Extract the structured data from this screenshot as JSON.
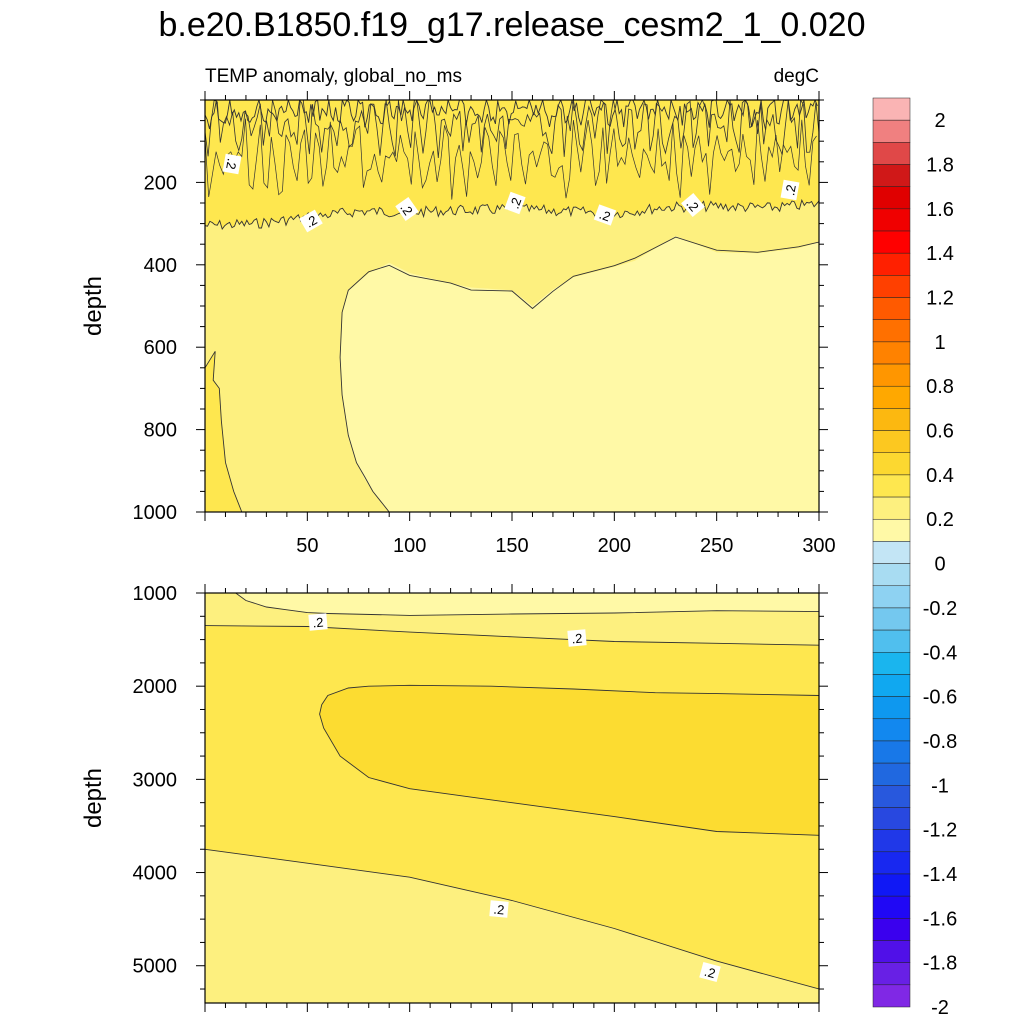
{
  "title": "b.e20.B1850.f19_g17.release_cesm2_1_0.020",
  "colors": {
    "lev_0_to_0_1": "#fff9a6",
    "lev_0_1_to_0_2": "#fdf07f",
    "lev_0_2_to_0_3": "#fee74f",
    "lev_0_3_to_0_4": "#fcdc31",
    "contour_line": "#333333"
  },
  "chart_data": [
    {
      "type": "contour",
      "panel": "upper",
      "left_title": "TEMP anomaly, global_no_ms",
      "right_title": "degC",
      "ylabel": "depth",
      "xlabel": "",
      "xlim": [
        0,
        300
      ],
      "ylim": [
        1000,
        0
      ],
      "y_reversed": true,
      "xticks": [
        50,
        100,
        150,
        200,
        250,
        300
      ],
      "yticks": [
        200,
        400,
        600,
        800,
        1000
      ],
      "contour_labels": [
        ".2",
        ".2",
        ".2",
        ".2",
        ".2",
        ".2",
        ".2"
      ],
      "regions": [
        {
          "level": "0.1 to 0.2",
          "desc": "main background, 250-1000 m"
        },
        {
          "level": "0 to 0.1",
          "desc": "large pale pocket x>65, below ~300-500 m"
        },
        {
          "level": "0.2 to 0.4",
          "desc": "noisy surface band 0-280 m"
        },
        {
          "level": "0.2 to 0.3",
          "desc": "thin wedge x<20 at 600-1000 m"
        }
      ],
      "boundary_02_upper": {
        "x": [
          0,
          25,
          50,
          75,
          100,
          125,
          150,
          175,
          200,
          225,
          250,
          275,
          300
        ],
        "depth": [
          305,
          300,
          285,
          270,
          272,
          268,
          265,
          270,
          275,
          260,
          258,
          262,
          252
        ]
      },
      "boundary_01_upper": {
        "x": [
          300,
          290,
          270,
          250,
          230,
          210,
          200,
          180,
          170,
          160,
          150,
          130,
          120,
          100,
          90,
          80,
          70,
          67,
          66,
          67,
          70,
          74,
          78,
          82,
          86,
          90
        ],
        "depth": [
          345,
          360,
          372,
          370,
          330,
          390,
          405,
          430,
          460,
          500,
          462,
          455,
          445,
          420,
          395,
          420,
          460,
          520,
          620,
          720,
          820,
          880,
          920,
          950,
          975,
          1000
        ]
      },
      "boundary_02_wedge": {
        "x": [
          0,
          5,
          4,
          7,
          8,
          10,
          14,
          18
        ],
        "depth": [
          650,
          610,
          680,
          700,
          780,
          880,
          950,
          1000
        ]
      }
    },
    {
      "type": "contour",
      "panel": "lower",
      "left_title": "",
      "right_title": "",
      "ylabel": "depth",
      "xlabel": "",
      "xlim": [
        0,
        300
      ],
      "ylim": [
        5400,
        1000
      ],
      "y_reversed": true,
      "xticks": [
        50,
        100,
        150,
        200,
        250,
        300
      ],
      "yticks": [
        1000,
        2000,
        3000,
        4000,
        5000
      ],
      "contour_labels": [
        ".2",
        ".2",
        ".2",
        ".2"
      ],
      "regions": [
        {
          "level": "0 to 0.1",
          "desc": "top strip below ~1000 m"
        },
        {
          "level": "0.1 to 0.2",
          "desc": "upper band ~1000-1600 m"
        },
        {
          "level": "0.2 to 0.3",
          "desc": "main background"
        },
        {
          "level": "0.3 to 0.4",
          "desc": "core 2000-3600 m, x>60"
        },
        {
          "level": "0.1 to 0.2",
          "desc": "deep band below 3750-5300 m"
        }
      ],
      "contour_a": {
        "x": [
          15,
          20,
          30,
          40,
          50,
          60,
          100,
          150,
          200,
          250,
          300
        ],
        "depth": [
          1000,
          1080,
          1150,
          1180,
          1210,
          1220,
          1240,
          1225,
          1215,
          1190,
          1200
        ]
      },
      "contour_b": {
        "x": [
          0,
          50,
          100,
          150,
          200,
          250,
          300
        ],
        "depth": [
          1350,
          1360,
          1420,
          1470,
          1520,
          1540,
          1560
        ]
      },
      "core_03": {
        "x": [
          57,
          60,
          70,
          80,
          100,
          140,
          180,
          220,
          250,
          300,
          300,
          250,
          200,
          150,
          100,
          80,
          66,
          58,
          56
        ],
        "depth": [
          2200,
          2100,
          2020,
          2000,
          1990,
          2000,
          2030,
          2070,
          2080,
          2100,
          3600,
          3560,
          3400,
          3250,
          3100,
          2980,
          2750,
          2450,
          2300
        ]
      },
      "contour_deep": {
        "x": [
          0,
          50,
          100,
          150,
          200,
          250,
          300
        ],
        "depth": [
          3750,
          3900,
          4050,
          4300,
          4600,
          4950,
          5250
        ]
      }
    },
    {
      "type": "colorbar",
      "labels": [
        "2",
        "1.8",
        "1.6",
        "1.4",
        "1.2",
        "1",
        "0.8",
        "0.6",
        "0.4",
        "0.2",
        "0",
        "-0.2",
        "-0.4",
        "-0.6",
        "-0.8",
        "-1",
        "-1.2",
        "-1.4",
        "-1.6",
        "-1.8",
        "-2"
      ],
      "colors": [
        "#fab4b4",
        "#f08080",
        "#e04848",
        "#d01818",
        "#e00000",
        "#f00000",
        "#ff0000",
        "#ff2000",
        "#ff4000",
        "#ff5a00",
        "#ff7000",
        "#ff8200",
        "#ff9600",
        "#ffa800",
        "#fcb810",
        "#fcc820",
        "#fcd830",
        "#fee74f",
        "#fdf07f",
        "#fff9a6",
        "#c3e5f5",
        "#a8dcf2",
        "#8ed2f2",
        "#74c8ef",
        "#50bfee",
        "#1ab5ee",
        "#10a8f0",
        "#0e98ef",
        "#1288ef",
        "#1878e8",
        "#2068e0",
        "#2858dd",
        "#2848e0",
        "#2038e8",
        "#1828f0",
        "#1018f5",
        "#2008f5",
        "#3a00ee",
        "#5010e8",
        "#6820e5",
        "#8028e5"
      ]
    }
  ]
}
